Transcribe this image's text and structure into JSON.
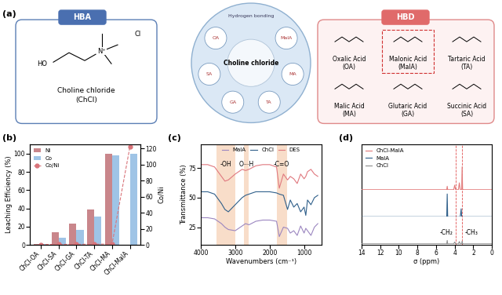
{
  "panels": [
    "(a)",
    "(b)",
    "(c)",
    "(d)"
  ],
  "diagram": {
    "hba": {
      "title": "HBA",
      "atoms": [
        "HO",
        "N⁺",
        "Cl"
      ],
      "name": [
        "Choline chloride",
        "(ChCl)"
      ]
    },
    "center": {
      "label": "Choline chloride",
      "ring": [
        "Hydrogen bonding"
      ],
      "around": [
        "OA",
        "SA",
        "GA",
        "TA",
        "MA",
        "MalA"
      ]
    },
    "hbd": {
      "title": "HBD",
      "acids": [
        [
          "Oxalic Acid",
          "(OA)"
        ],
        [
          "Malonic Acid",
          "(MalA)"
        ],
        [
          "Tartaric Acid",
          "(TA)"
        ],
        [
          "Malic Acid",
          "(MA)"
        ],
        [
          "Glutaric Acid",
          "(GA)"
        ],
        [
          "Succinic Acid",
          "(SA)"
        ]
      ]
    }
  },
  "chart_data": [
    {
      "type": "bar",
      "categories": [
        "ChCl-OA",
        "ChCl-SA",
        "ChCl-GA",
        "ChCl-TA",
        "ChCl-MA",
        "ChCl-MalA"
      ],
      "series": [
        {
          "name": "Ni",
          "color": "#c9868b",
          "values": [
            1,
            14,
            23,
            39,
            100,
            0
          ]
        },
        {
          "name": "Co",
          "color": "#9fc4e6",
          "values": [
            0.5,
            8,
            16,
            31,
            98,
            100
          ]
        },
        {
          "name": "Co/Ni",
          "type": "line",
          "axis": "y2",
          "color": "#d9747a",
          "marker": "o",
          "line_style": "dashed",
          "values": [
            0.5,
            0.6,
            0.7,
            0.8,
            1.0,
            122
          ]
        }
      ],
      "y_label": "Leaching Efficiency (%)",
      "y2_label": "Co/Ni",
      "ylim": [
        0,
        110
      ],
      "yticks": [
        0,
        20,
        40,
        60,
        80,
        100
      ],
      "y2lim": [
        0,
        125
      ],
      "y2ticks": [
        0,
        20,
        40,
        60,
        80,
        100,
        120
      ],
      "legend": "upper left"
    },
    {
      "type": "line",
      "x": [
        4000,
        3800,
        3600,
        3400,
        3300,
        3200,
        3000,
        2800,
        2700,
        2600,
        2400,
        2200,
        2000,
        1800,
        1720,
        1600,
        1480,
        1400,
        1300,
        1200,
        1100,
        1000,
        950,
        900,
        800,
        700,
        600
      ],
      "series": [
        {
          "name": "MalA",
          "color": "#9b86c0",
          "values": [
            33,
            33,
            32,
            28,
            25,
            23,
            22,
            26,
            28,
            27,
            30,
            31,
            31,
            30,
            17,
            25,
            24,
            20,
            22,
            18,
            26,
            20,
            24,
            22,
            18,
            25,
            28
          ]
        },
        {
          "name": "ChCl",
          "color": "#2f5f8a",
          "values": [
            55,
            55,
            53,
            45,
            40,
            38,
            44,
            50,
            52,
            53,
            55,
            55,
            55,
            54,
            53,
            52,
            40,
            48,
            42,
            45,
            38,
            42,
            35,
            48,
            44,
            50,
            52
          ]
        },
        {
          "name": "DES",
          "color": "#e0787f",
          "values": [
            78,
            78,
            76,
            68,
            64,
            65,
            70,
            74,
            73,
            74,
            77,
            78,
            78,
            76,
            58,
            70,
            65,
            68,
            66,
            62,
            70,
            66,
            68,
            72,
            74,
            70,
            68
          ]
        }
      ],
      "x_label": "Wavenumbers (cm⁻¹)",
      "y_label": "Transmittance (%)",
      "xlim": [
        4000,
        500
      ],
      "xticks": [
        4000,
        3000,
        2000,
        1000
      ],
      "ylim": [
        10,
        95
      ],
      "yticks": [
        25,
        50,
        75
      ],
      "legend": "upper center",
      "bands": [
        {
          "from": 3000,
          "to": 3550,
          "label": "-OH"
        },
        {
          "from": 2600,
          "to": 2750,
          "label": "O⋯H"
        },
        {
          "from": 1500,
          "to": 1800,
          "label": "-C=O"
        }
      ]
    },
    {
      "type": "line",
      "x": [
        14,
        6,
        5.0,
        4.85,
        4.8,
        4.75,
        4.1,
        4.0,
        3.9,
        3.6,
        3.5,
        3.4,
        3.3,
        3.25,
        3.2,
        3.15,
        3.1,
        2.5,
        0
      ],
      "series": [
        {
          "name": "ChCl-MalA",
          "color": "#e27b7b",
          "values": [
            0,
            0,
            0,
            0,
            0.15,
            0,
            0,
            0.2,
            0,
            0,
            0.3,
            0,
            0,
            0,
            1.0,
            0,
            0,
            0,
            0
          ]
        },
        {
          "name": "MalA",
          "color": "#2f5f8a",
          "values": [
            0,
            0,
            0,
            0,
            1.0,
            0,
            0,
            0,
            0,
            0,
            0,
            0,
            0.35,
            0,
            0,
            0,
            0,
            0,
            0
          ]
        },
        {
          "name": "ChCl",
          "color": "#8c8c8c",
          "values": [
            0,
            0,
            0,
            0,
            0.15,
            0,
            0,
            0.08,
            0,
            0,
            0.1,
            0,
            0,
            0,
            0.12,
            0,
            0,
            0,
            0
          ]
        }
      ],
      "x_label": "σ (ppm)",
      "xlim": [
        14,
        0
      ],
      "xticks": [
        14,
        12,
        10,
        8,
        6,
        4,
        2,
        0
      ],
      "ylim": [
        0,
        1.1
      ],
      "tick_labels": "x",
      "legend": "upper left",
      "peaks": [
        {
          "x": 3.9,
          "label": "-CH₂"
        },
        {
          "x": 3.2,
          "label": "-CH₃"
        }
      ]
    }
  ]
}
